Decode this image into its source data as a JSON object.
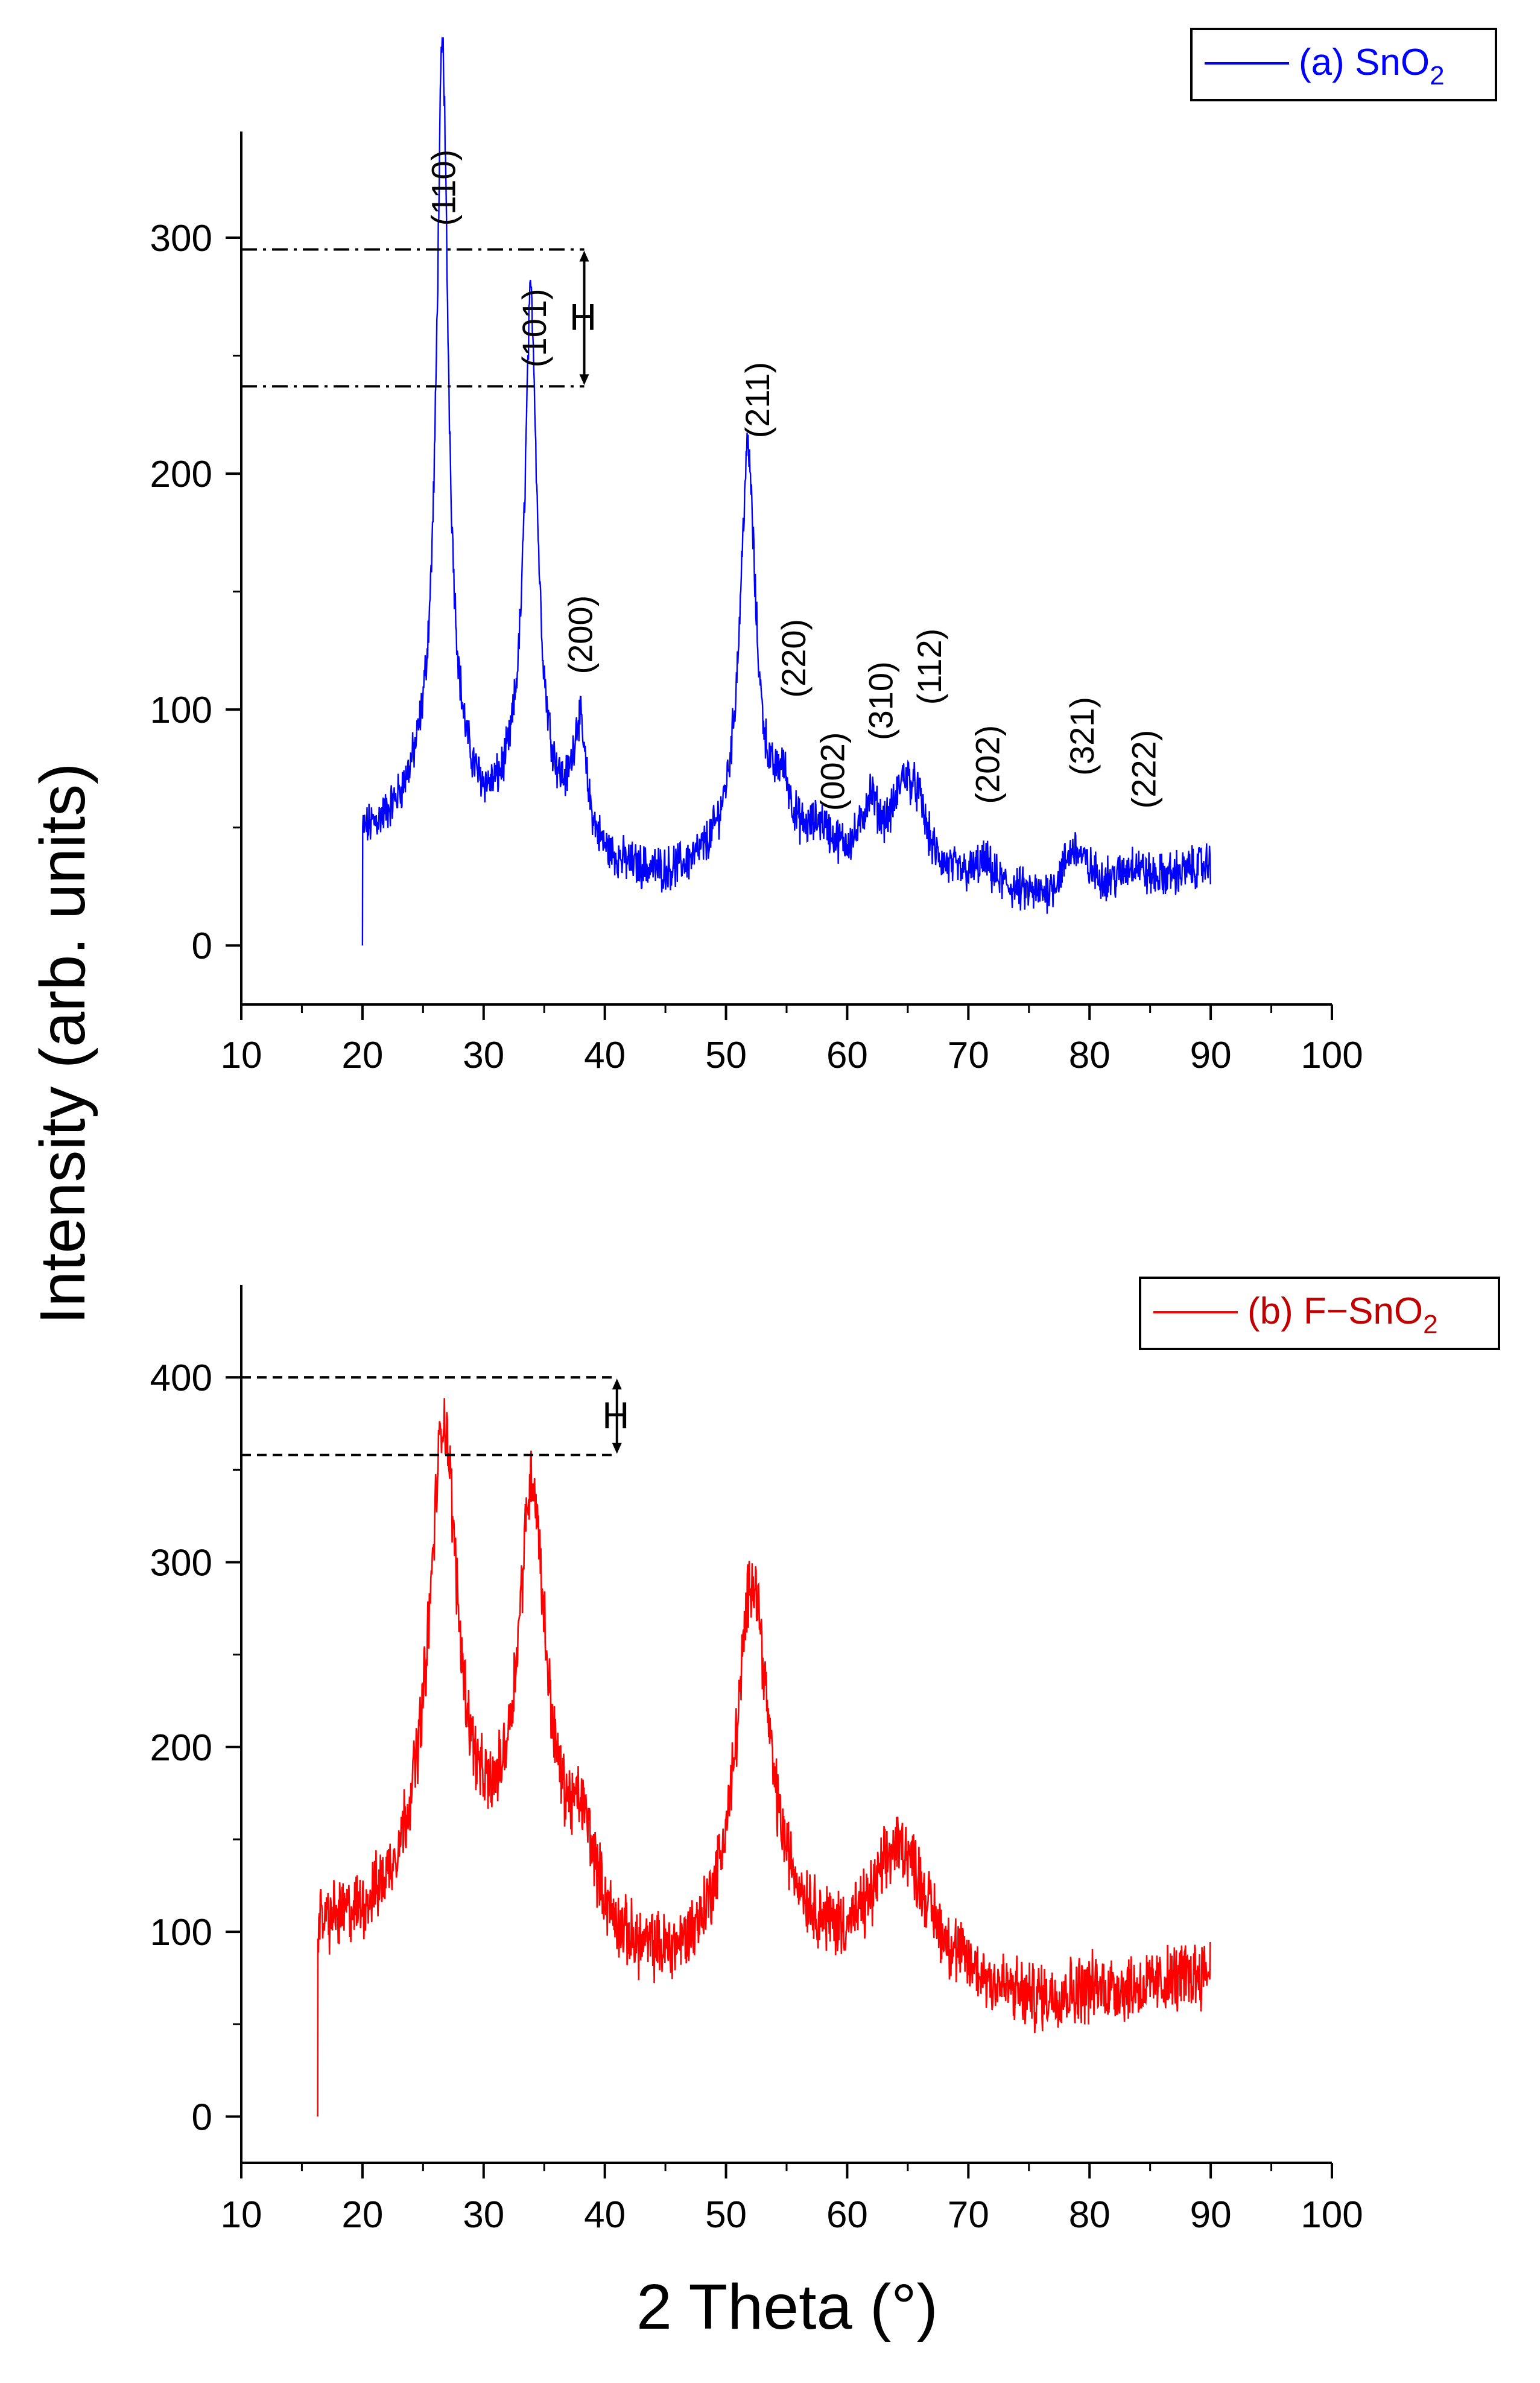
{
  "colors": {
    "sno2": "#0000ff",
    "fsno2": "#ff0000",
    "legend_b_text": "#c00000",
    "axis": "#000000"
  },
  "y_axis_title": "Intensity (arb. units)",
  "x_axis_title": "2 Theta (°)",
  "chart_data": [
    {
      "type": "line",
      "panel": "top",
      "legend": {
        "prefix": "(a) SnO",
        "subscript": "2",
        "placement": "top-right"
      },
      "xlim": [
        10,
        100
      ],
      "ylim": [
        -25,
        345
      ],
      "x_ticks": [
        10,
        20,
        30,
        40,
        50,
        60,
        70,
        80,
        90,
        100
      ],
      "y_ticks": [
        0,
        100,
        200,
        300
      ],
      "x_range": [
        20,
        90
      ],
      "peaks": [
        {
          "x": 26.6,
          "y": 290,
          "w": 0.55
        },
        {
          "x": 26.6,
          "y": 45,
          "w": 2.0
        },
        {
          "x": 33.9,
          "y": 195,
          "w": 0.6
        },
        {
          "x": 33.9,
          "y": 40,
          "w": 2.2
        },
        {
          "x": 37.9,
          "y": 50,
          "w": 0.7
        },
        {
          "x": 51.8,
          "y": 150,
          "w": 0.75
        },
        {
          "x": 51.8,
          "y": 28,
          "w": 2.4
        },
        {
          "x": 54.7,
          "y": 20,
          "w": 0.7
        },
        {
          "x": 57.8,
          "y": 10,
          "w": 0.9
        },
        {
          "x": 61.9,
          "y": 22,
          "w": 0.7
        },
        {
          "x": 64.7,
          "y": 30,
          "w": 1.0
        },
        {
          "x": 65.9,
          "y": 18,
          "w": 0.8
        },
        {
          "x": 71.3,
          "y": 8,
          "w": 0.8
        },
        {
          "x": 78.7,
          "y": 18,
          "w": 1.1
        },
        {
          "x": 83.7,
          "y": 8,
          "w": 0.9
        }
      ],
      "baseline": [
        [
          20.2,
          42
        ],
        [
          24,
          46
        ],
        [
          30,
          36
        ],
        [
          36,
          32
        ],
        [
          40,
          28
        ],
        [
          45,
          24
        ],
        [
          50,
          26
        ],
        [
          55,
          34
        ],
        [
          60,
          34
        ],
        [
          63,
          36
        ],
        [
          68,
          28
        ],
        [
          72,
          24
        ],
        [
          76,
          18
        ],
        [
          80,
          24
        ],
        [
          85,
          26
        ],
        [
          89.9,
          34
        ]
      ],
      "noise": 15,
      "annotations": [
        {
          "label": "(110)",
          "x": 26.7,
          "y": 305
        },
        {
          "label": "(101)",
          "x": 34.2,
          "y": 245
        },
        {
          "label": "(200)",
          "x": 38.0,
          "y": 115
        },
        {
          "label": "(211)",
          "x": 52.6,
          "y": 215
        },
        {
          "label": "(220)",
          "x": 55.6,
          "y": 105
        },
        {
          "label": "(002)",
          "x": 58.8,
          "y": 57
        },
        {
          "label": "(310)",
          "x": 62.8,
          "y": 87
        },
        {
          "label": "(112)",
          "x": 66.8,
          "y": 102
        },
        {
          "label": "(202)",
          "x": 71.6,
          "y": 60
        },
        {
          "label": "(321)",
          "x": 79.4,
          "y": 72
        },
        {
          "label": "(222)",
          "x": 84.5,
          "y": 58
        }
      ],
      "h_marker": {
        "label": "H",
        "y_top": 295,
        "y_bottom": 237,
        "x_end": 38.3,
        "style": "dash-dot"
      }
    },
    {
      "type": "line",
      "panel": "bottom",
      "legend": {
        "prefix": "(b) F−SnO",
        "subscript": "2",
        "placement": "top-right"
      },
      "xlim": [
        10,
        100
      ],
      "ylim": [
        -25,
        450
      ],
      "x_ticks": [
        10,
        20,
        30,
        40,
        50,
        60,
        70,
        80,
        90,
        100
      ],
      "y_ticks": [
        0,
        100,
        200,
        300,
        400
      ],
      "x_range": [
        16.3,
        90
      ],
      "peaks": [
        {
          "x": 26.7,
          "y": 210,
          "w": 1.3
        },
        {
          "x": 26.7,
          "y": 60,
          "w": 3.0
        },
        {
          "x": 34.0,
          "y": 190,
          "w": 1.3
        },
        {
          "x": 34.0,
          "y": 50,
          "w": 3.2
        },
        {
          "x": 38.2,
          "y": 45,
          "w": 1.3
        },
        {
          "x": 52.2,
          "y": 180,
          "w": 1.5
        },
        {
          "x": 52.2,
          "y": 30,
          "w": 3.5
        },
        {
          "x": 64.4,
          "y": 70,
          "w": 2.8
        }
      ],
      "baseline": [
        [
          16.5,
          95
        ],
        [
          20,
          92
        ],
        [
          24,
          95
        ],
        [
          30,
          88
        ],
        [
          36,
          82
        ],
        [
          42,
          70
        ],
        [
          46,
          66
        ],
        [
          50,
          72
        ],
        [
          56,
          80
        ],
        [
          60,
          72
        ],
        [
          66,
          70
        ],
        [
          70,
          66
        ],
        [
          75,
          58
        ],
        [
          80,
          66
        ],
        [
          85,
          68
        ],
        [
          89.9,
          78
        ]
      ],
      "noise": 30,
      "annotations": [],
      "h_marker": {
        "label": "H",
        "y_top": 400,
        "y_bottom": 358,
        "x_end": 41.0,
        "style": "dashed"
      }
    }
  ]
}
